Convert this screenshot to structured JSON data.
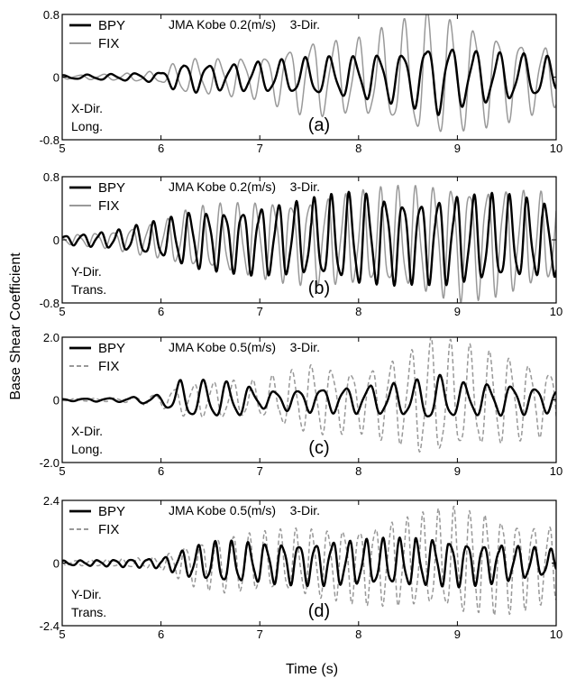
{
  "figure": {
    "ylabel": "Base Shear Coefficient",
    "xlabel": "Time (s)"
  },
  "chart_data": [
    {
      "type": "line",
      "panel_label": "(a)",
      "title": "JMA Kobe 0.2(m/s)    3-Dir.",
      "annotation": [
        "X-Dir.",
        "Long."
      ],
      "xlim": [
        5,
        10
      ],
      "ylim": [
        -0.8,
        0.8
      ],
      "xticks": [
        "5",
        "6",
        "7",
        "8",
        "9",
        "10"
      ],
      "yticks": [
        "0.8",
        "0",
        "-0.8"
      ],
      "legend": "top-left",
      "series": [
        {
          "name": "BPY",
          "color": "#000000",
          "style": "solid",
          "width": 2.4,
          "amp_env": [
            [
              5.0,
              0.02
            ],
            [
              5.6,
              0.04
            ],
            [
              6.0,
              0.06
            ],
            [
              6.2,
              0.18
            ],
            [
              6.6,
              0.15
            ],
            [
              7.0,
              0.18
            ],
            [
              7.5,
              0.22
            ],
            [
              8.0,
              0.25
            ],
            [
              8.5,
              0.32
            ],
            [
              8.8,
              0.42
            ],
            [
              9.0,
              0.35
            ],
            [
              9.5,
              0.28
            ],
            [
              10.0,
              0.22
            ]
          ],
          "period": 0.245,
          "phase": 0.2,
          "seed": 1
        },
        {
          "name": "FIX",
          "color": "#999999",
          "style": "solid",
          "width": 1.5,
          "amp_env": [
            [
              5.0,
              0.02
            ],
            [
              5.6,
              0.04
            ],
            [
              6.0,
              0.07
            ],
            [
              6.2,
              0.2
            ],
            [
              6.6,
              0.22
            ],
            [
              7.0,
              0.25
            ],
            [
              7.5,
              0.45
            ],
            [
              8.0,
              0.45
            ],
            [
              8.5,
              0.65
            ],
            [
              8.7,
              0.75
            ],
            [
              9.0,
              0.65
            ],
            [
              9.5,
              0.5
            ],
            [
              10.0,
              0.35
            ]
          ],
          "period": 0.235,
          "phase": 0.5,
          "seed": 2
        }
      ]
    },
    {
      "type": "line",
      "panel_label": "(b)",
      "title": "JMA Kobe 0.2(m/s)    3-Dir.",
      "annotation": [
        "Y-Dir.",
        "Trans."
      ],
      "xlim": [
        5,
        10
      ],
      "ylim": [
        -0.8,
        0.8
      ],
      "xticks": [
        "5",
        "6",
        "7",
        "8",
        "9",
        "10"
      ],
      "yticks": [
        "0.8",
        "0",
        "-0.8"
      ],
      "legend": "top-left",
      "series": [
        {
          "name": "BPY",
          "color": "#000000",
          "style": "solid",
          "width": 2.4,
          "amp_env": [
            [
              5.0,
              0.05
            ],
            [
              5.5,
              0.1
            ],
            [
              6.0,
              0.22
            ],
            [
              6.3,
              0.33
            ],
            [
              6.6,
              0.35
            ],
            [
              7.0,
              0.4
            ],
            [
              7.5,
              0.45
            ],
            [
              8.0,
              0.55
            ],
            [
              8.5,
              0.48
            ],
            [
              9.0,
              0.52
            ],
            [
              9.5,
              0.5
            ],
            [
              10.0,
              0.42
            ]
          ],
          "period": 0.18,
          "phase": 0.1,
          "seed": 3
        },
        {
          "name": "FIX",
          "color": "#999999",
          "style": "solid",
          "width": 1.5,
          "amp_env": [
            [
              5.0,
              0.05
            ],
            [
              5.5,
              0.1
            ],
            [
              6.0,
              0.22
            ],
            [
              6.3,
              0.35
            ],
            [
              6.6,
              0.4
            ],
            [
              7.0,
              0.45
            ],
            [
              7.5,
              0.5
            ],
            [
              8.0,
              0.55
            ],
            [
              8.5,
              0.6
            ],
            [
              9.0,
              0.68
            ],
            [
              9.5,
              0.62
            ],
            [
              10.0,
              0.5
            ]
          ],
          "period": 0.18,
          "phase": 0.35,
          "seed": 4
        }
      ]
    },
    {
      "type": "line",
      "panel_label": "(c)",
      "title": "JMA Kobe 0.5(m/s)    3-Dir.",
      "annotation": [
        "X-Dir.",
        "Long."
      ],
      "xlim": [
        5,
        10
      ],
      "ylim": [
        -2.0,
        2.0
      ],
      "xticks": [
        "5",
        "6",
        "7",
        "8",
        "9",
        "10"
      ],
      "yticks": [
        "2.0",
        "0",
        "-2.0"
      ],
      "legend": "top-left",
      "series": [
        {
          "name": "BPY",
          "color": "#000000",
          "style": "solid",
          "width": 2.4,
          "amp_env": [
            [
              5.0,
              0.03
            ],
            [
              5.6,
              0.06
            ],
            [
              6.0,
              0.15
            ],
            [
              6.2,
              0.55
            ],
            [
              6.5,
              0.55
            ],
            [
              6.8,
              0.5
            ],
            [
              7.0,
              0.25
            ],
            [
              7.5,
              0.35
            ],
            [
              8.0,
              0.4
            ],
            [
              8.5,
              0.5
            ],
            [
              8.8,
              0.7
            ],
            [
              9.0,
              0.5
            ],
            [
              9.5,
              0.45
            ],
            [
              10.0,
              0.35
            ]
          ],
          "period": 0.24,
          "phase": 0.3,
          "seed": 5
        },
        {
          "name": "FIX",
          "color": "#999999",
          "style": "dash",
          "width": 1.5,
          "amp_env": [
            [
              5.0,
              0.03
            ],
            [
              5.6,
              0.06
            ],
            [
              6.0,
              0.2
            ],
            [
              6.2,
              0.45
            ],
            [
              6.6,
              0.55
            ],
            [
              7.0,
              0.55
            ],
            [
              7.5,
              1.05
            ],
            [
              8.0,
              0.9
            ],
            [
              8.5,
              1.4
            ],
            [
              8.7,
              1.8
            ],
            [
              9.0,
              1.6
            ],
            [
              9.5,
              1.3
            ],
            [
              10.0,
              0.9
            ]
          ],
          "period": 0.2,
          "phase": 0.6,
          "seed": 6
        }
      ]
    },
    {
      "type": "line",
      "panel_label": "(d)",
      "title": "JMA Kobe 0.5(m/s)    3-Dir.",
      "annotation": [
        "Y-Dir.",
        "Trans."
      ],
      "xlim": [
        5,
        10
      ],
      "ylim": [
        -2.4,
        2.4
      ],
      "xticks": [
        "5",
        "6",
        "7",
        "8",
        "9",
        "10"
      ],
      "yticks": [
        "2.4",
        "0",
        "-2.4"
      ],
      "legend": "top-left",
      "series": [
        {
          "name": "BPY",
          "color": "#000000",
          "style": "solid",
          "width": 2.4,
          "amp_env": [
            [
              5.0,
              0.08
            ],
            [
              5.5,
              0.12
            ],
            [
              6.0,
              0.18
            ],
            [
              6.3,
              0.55
            ],
            [
              6.6,
              0.75
            ],
            [
              7.0,
              0.7
            ],
            [
              7.5,
              0.75
            ],
            [
              8.0,
              0.8
            ],
            [
              8.5,
              0.85
            ],
            [
              9.0,
              0.8
            ],
            [
              9.5,
              0.65
            ],
            [
              10.0,
              0.45
            ]
          ],
          "period": 0.17,
          "phase": 0.15,
          "seed": 7
        },
        {
          "name": "FIX",
          "color": "#999999",
          "style": "dash",
          "width": 1.5,
          "amp_env": [
            [
              5.0,
              0.08
            ],
            [
              5.5,
              0.12
            ],
            [
              6.0,
              0.22
            ],
            [
              6.3,
              0.75
            ],
            [
              6.6,
              1.0
            ],
            [
              7.0,
              1.05
            ],
            [
              7.5,
              1.2
            ],
            [
              8.0,
              1.35
            ],
            [
              8.5,
              1.6
            ],
            [
              9.0,
              1.9
            ],
            [
              9.5,
              1.7
            ],
            [
              10.0,
              1.3
            ]
          ],
          "period": 0.16,
          "phase": 0.45,
          "seed": 8
        }
      ]
    }
  ]
}
